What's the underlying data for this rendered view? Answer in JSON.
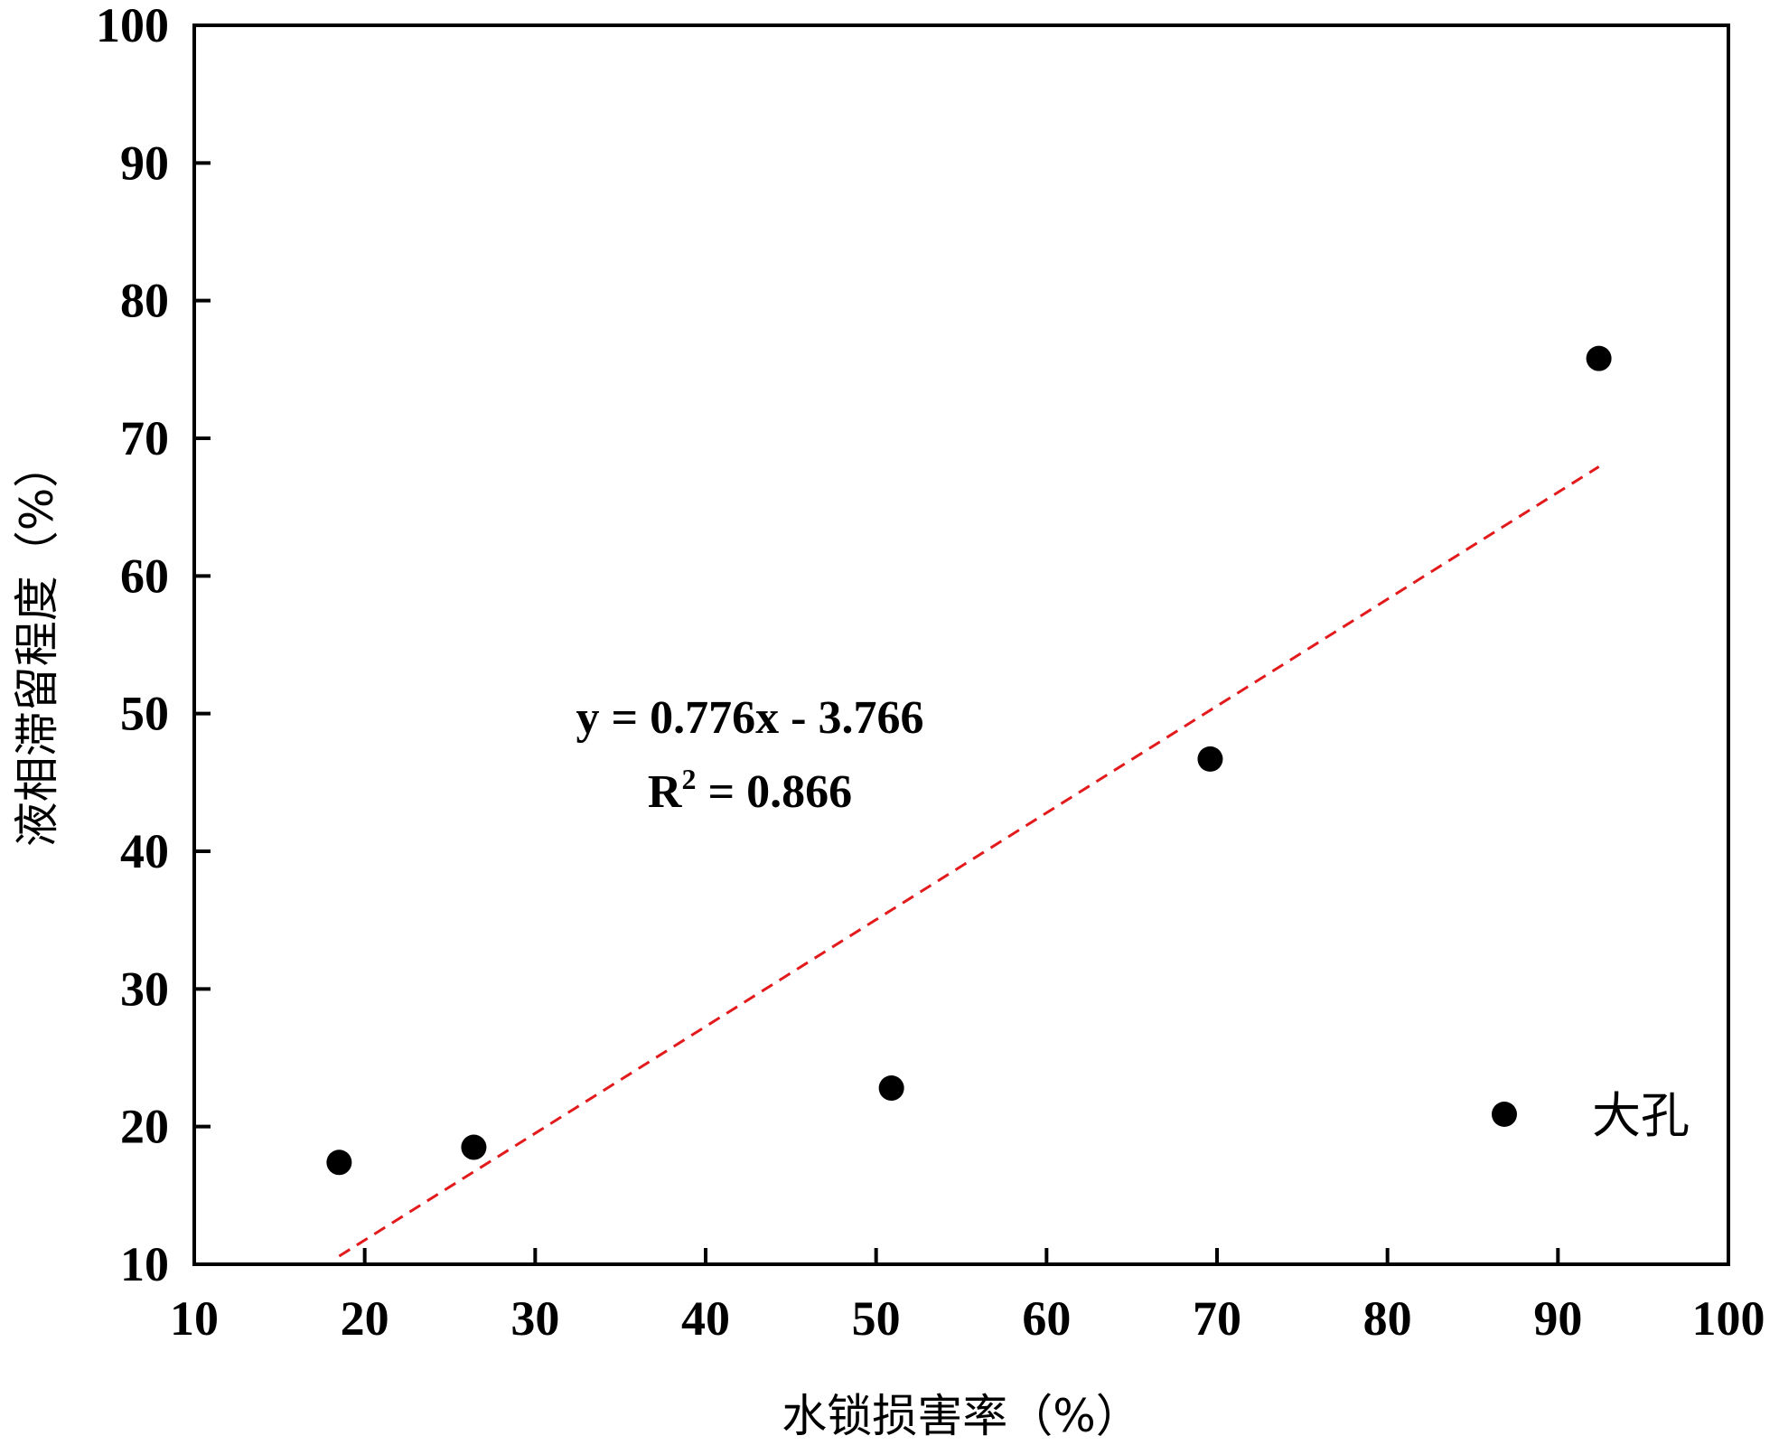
{
  "chart_data": {
    "type": "scatter",
    "title": "",
    "xlabel": "水锁损害率（%）",
    "ylabel": "液相滞留程度（%）",
    "xlim": [
      10,
      100
    ],
    "ylim": [
      10,
      100
    ],
    "xticks": [
      10,
      20,
      30,
      40,
      50,
      60,
      70,
      80,
      90,
      100
    ],
    "yticks": [
      10,
      20,
      30,
      40,
      50,
      60,
      70,
      80,
      90,
      100
    ],
    "grid": false,
    "legend_position": "bottom-right",
    "series": [
      {
        "name": "大孔",
        "color": "#000000",
        "marker": "circle",
        "points": [
          {
            "x": 18.5,
            "y": 17.4
          },
          {
            "x": 26.4,
            "y": 18.5
          },
          {
            "x": 50.9,
            "y": 22.8
          },
          {
            "x": 69.6,
            "y": 46.7
          },
          {
            "x": 92.4,
            "y": 75.8
          }
        ]
      }
    ],
    "trendline": {
      "style": "dashed",
      "color": "#e31a1c",
      "slope": 0.776,
      "intercept": -3.766,
      "x_range": [
        18.5,
        92.4
      ]
    },
    "annotations": {
      "equation": "y = 0.776x - 3.766",
      "r2_prefix": "R",
      "r2_sup": "2",
      "r2_suffix": " = 0.866"
    }
  }
}
